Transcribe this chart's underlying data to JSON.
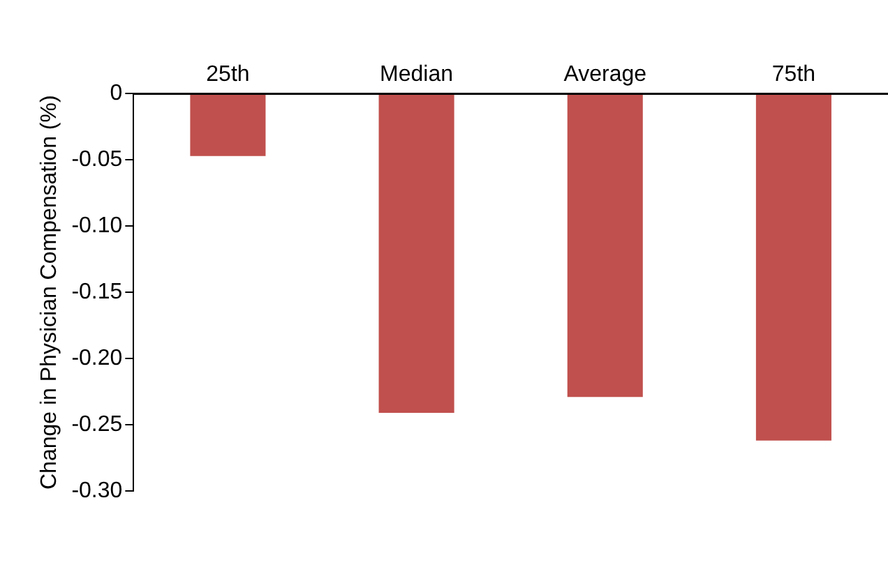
{
  "chart_data": {
    "type": "bar",
    "ylabel": "Change in Physician Compensation (%)",
    "categories": [
      "25th",
      "Median",
      "Average",
      "75th"
    ],
    "values": [
      -0.047,
      -0.241,
      -0.229,
      -0.262
    ],
    "color": "#c0504d",
    "ylim": [
      -0.3,
      0
    ],
    "yticks": [
      {
        "value": 0,
        "label": "0"
      },
      {
        "value": -0.05,
        "label": "-0.05"
      },
      {
        "value": -0.1,
        "label": "-0.10"
      },
      {
        "value": -0.15,
        "label": "-0.15"
      },
      {
        "value": -0.2,
        "label": "-0.20"
      },
      {
        "value": -0.25,
        "label": "-0.25"
      },
      {
        "value": -0.3,
        "label": "-0.30"
      }
    ],
    "grid": false
  }
}
